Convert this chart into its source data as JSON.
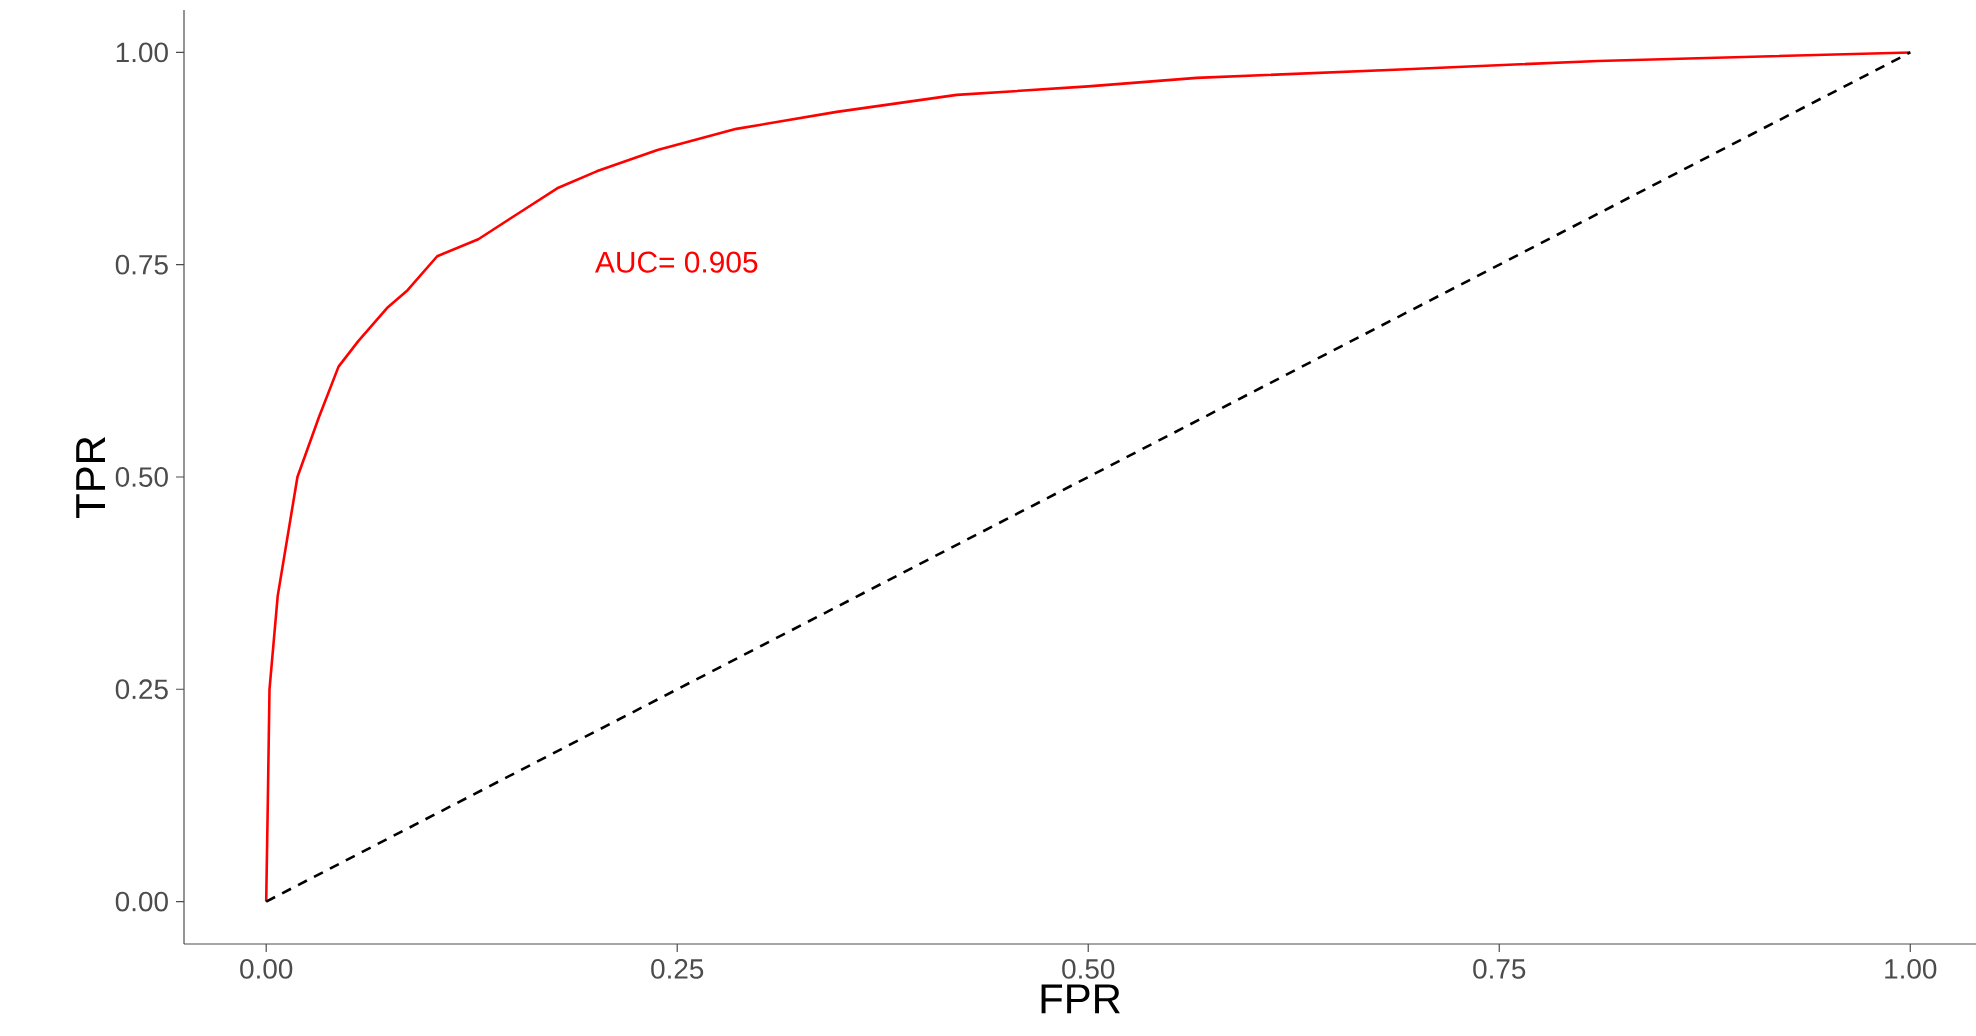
{
  "chart_data": {
    "type": "line",
    "xlabel": "FPR",
    "ylabel": "TPR",
    "xlim": [
      -0.05,
      1.04
    ],
    "ylim": [
      -0.05,
      1.05
    ],
    "xticks": [
      {
        "value": 0,
        "label": "0.00"
      },
      {
        "value": 0.25,
        "label": "0.25"
      },
      {
        "value": 0.5,
        "label": "0.50"
      },
      {
        "value": 0.75,
        "label": "0.75"
      },
      {
        "value": 1,
        "label": "1.00"
      }
    ],
    "yticks": [
      {
        "value": 0,
        "label": "0.00"
      },
      {
        "value": 0.25,
        "label": "0.25"
      },
      {
        "value": 0.5,
        "label": "0.50"
      },
      {
        "value": 0.75,
        "label": "0.75"
      },
      {
        "value": 1,
        "label": "1.00"
      }
    ],
    "marker": "none",
    "annotations": [
      "AUC= 0.905"
    ],
    "series": [
      {
        "color": "#ff0000",
        "line_style": "solid",
        "x": [
          0,
          0.001,
          0.002,
          0.007,
          0.013,
          0.019,
          0.032,
          0.044,
          0.056,
          0.074,
          0.086,
          0.104,
          0.129,
          0.153,
          0.177,
          0.201,
          0.238,
          0.286,
          0.347,
          0.42,
          0.5,
          0.566,
          0.69,
          0.81,
          1
        ],
        "values": [
          0,
          0.12,
          0.25,
          0.36,
          0.43,
          0.5,
          0.57,
          0.63,
          0.66,
          0.7,
          0.72,
          0.76,
          0.78,
          0.81,
          0.84,
          0.86,
          0.885,
          0.91,
          0.93,
          0.95,
          0.96,
          0.97,
          0.98,
          0.99,
          1
        ]
      },
      {
        "color": "#000000",
        "line_style": "dashed",
        "x": [
          0,
          1
        ],
        "values": [
          0,
          1
        ]
      }
    ]
  }
}
